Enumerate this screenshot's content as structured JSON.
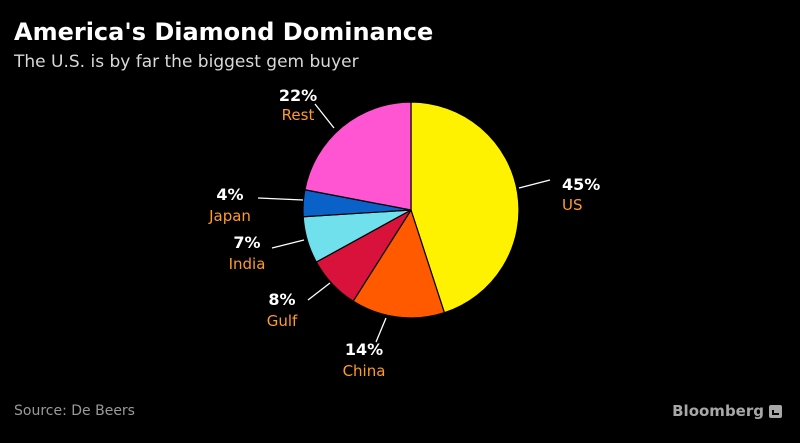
{
  "header": {
    "title": "America's Diamond Dominance",
    "subtitle": "The U.S. is by far the biggest gem buyer"
  },
  "footer": {
    "source": "Source: De Beers",
    "brand": "Bloomberg"
  },
  "colors": {
    "label_category": "#ff9a2e",
    "label_percent": "#ffffff",
    "leader_line": "#ffffff"
  },
  "chart_data": {
    "type": "pie",
    "title": "America's Diamond Dominance",
    "subtitle": "The U.S. is by far the biggest gem buyer",
    "unit": "%",
    "slices": [
      {
        "label": "US",
        "value": 45,
        "display": "45%",
        "color": "#fff200"
      },
      {
        "label": "China",
        "value": 14,
        "display": "14%",
        "color": "#ff5a00"
      },
      {
        "label": "Gulf",
        "value": 8,
        "display": "8%",
        "color": "#d8123b"
      },
      {
        "label": "India",
        "value": 7,
        "display": "7%",
        "color": "#6fe0ec"
      },
      {
        "label": "Japan",
        "value": 4,
        "display": "4%",
        "color": "#0a62c8"
      },
      {
        "label": "Rest",
        "value": 22,
        "display": "22%",
        "color": "#ff55d2"
      }
    ]
  }
}
